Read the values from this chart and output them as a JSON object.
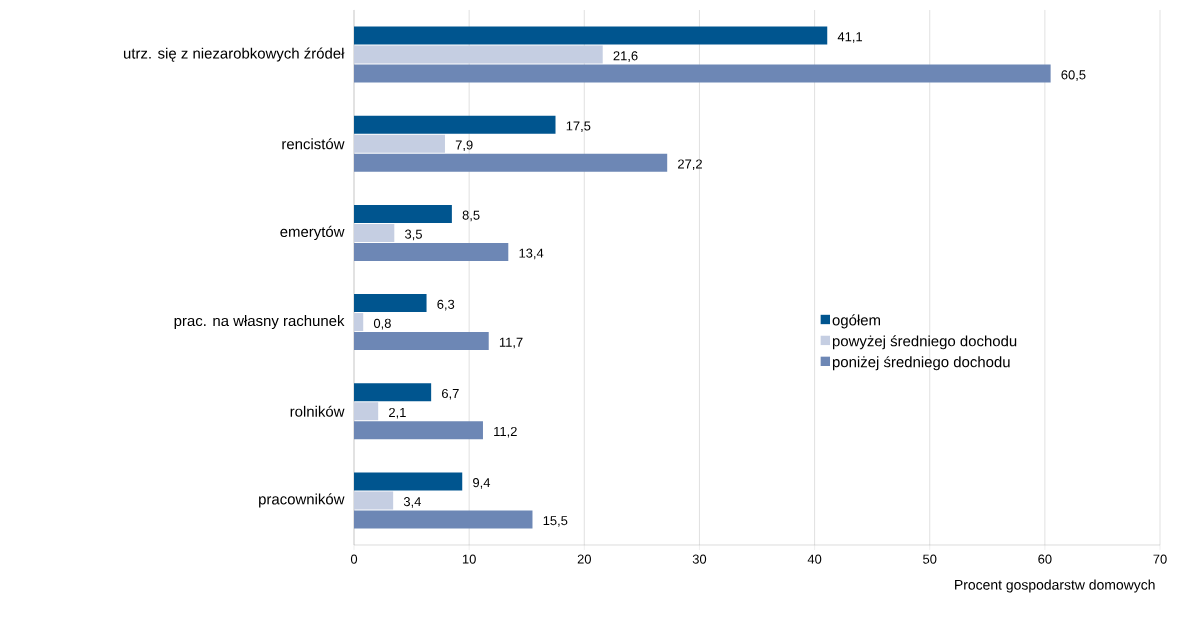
{
  "chart_data": {
    "type": "bar",
    "orientation": "horizontal",
    "categories": [
      "utrz. się z niezarobkowych źródeł",
      "rencistów",
      "emerytów",
      "prac. na własny rachunek",
      "rolników",
      "pracowników"
    ],
    "series": [
      {
        "name": "ogółem",
        "color": "#00558f",
        "values": [
          41.1,
          17.5,
          8.5,
          6.3,
          6.7,
          9.4
        ],
        "value_labels": [
          "41,1",
          "17,5",
          "8,5",
          "6,3",
          "6,7",
          "9,4"
        ]
      },
      {
        "name": "powyżej średniego dochodu",
        "color": "#c5cee2",
        "values": [
          21.6,
          7.9,
          3.5,
          0.8,
          2.1,
          3.4
        ],
        "value_labels": [
          "21,6",
          "7,9",
          "3,5",
          "0,8",
          "2,1",
          "3,4"
        ]
      },
      {
        "name": "poniżej średniego dochodu",
        "color": "#6d87b5",
        "values": [
          60.5,
          27.2,
          13.4,
          11.7,
          11.2,
          15.5
        ],
        "value_labels": [
          "60,5",
          "27,2",
          "13,4",
          "11,7",
          "11,2",
          "15,5"
        ]
      }
    ],
    "xlabel": "Procent gospodarstw domowych",
    "xlim": [
      0,
      70
    ],
    "xticks": [
      0,
      10,
      20,
      30,
      40,
      50,
      60,
      70
    ],
    "grid": "x",
    "legend": "right"
  }
}
